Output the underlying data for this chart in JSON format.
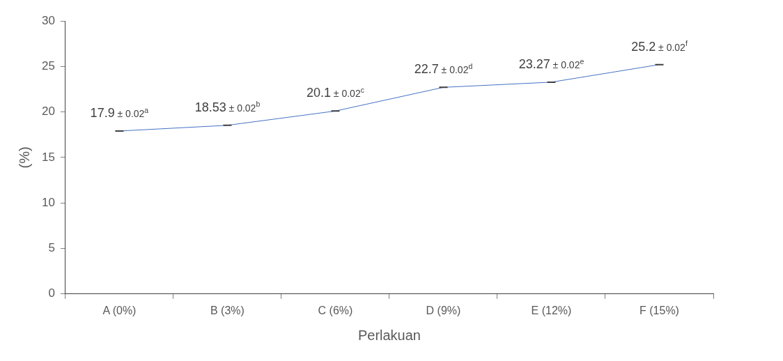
{
  "chart_data": {
    "type": "line",
    "xlabel": "Perlakuan",
    "ylabel": "(%)",
    "categories": [
      "A (0%)",
      "B (3%)",
      "C (6%)",
      "D (9%)",
      "E (12%)",
      "F (15%)"
    ],
    "series": [
      {
        "color": "#4472c4",
        "values": [
          17.9,
          18.53,
          20.1,
          22.7,
          23.27,
          25.2
        ],
        "errors": [
          0.02,
          0.02,
          0.02,
          0.02,
          0.02,
          0.02
        ],
        "value_labels": [
          "17.9 ± 0.02$^{a}$",
          "18.53 ± 0.02$^{b}$",
          "20.1 ± 0.02$^{c}$",
          "22.7 ± 0.02$^{d}$",
          "23.27 ± 0.02$^{e}$",
          "25.2 ± 0.02$^{f}$"
        ]
      }
    ],
    "ylim": [
      0,
      30
    ],
    "yticks": [
      0,
      5,
      10,
      15,
      20,
      25,
      30
    ],
    "grid": false,
    "legend": false,
    "marker": "none",
    "line_style": "solid"
  }
}
